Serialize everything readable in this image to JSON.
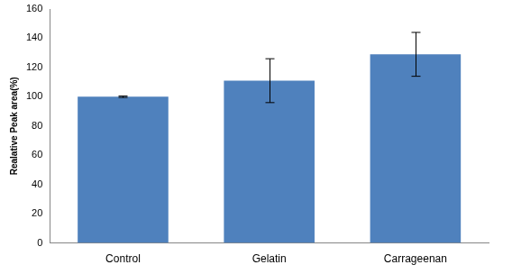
{
  "chart_data": {
    "type": "bar",
    "y_label": "Realative Peak area(%)",
    "categories": [
      "Control",
      "Gelatin",
      "Carrageenan"
    ],
    "values": [
      100,
      111,
      129
    ],
    "errors": [
      0.5,
      15,
      15
    ],
    "color": "#4f81bd",
    "ylim": [
      0,
      160
    ],
    "yticks": [
      0,
      20,
      40,
      60,
      80,
      100,
      120,
      140,
      160
    ],
    "grid": false
  }
}
